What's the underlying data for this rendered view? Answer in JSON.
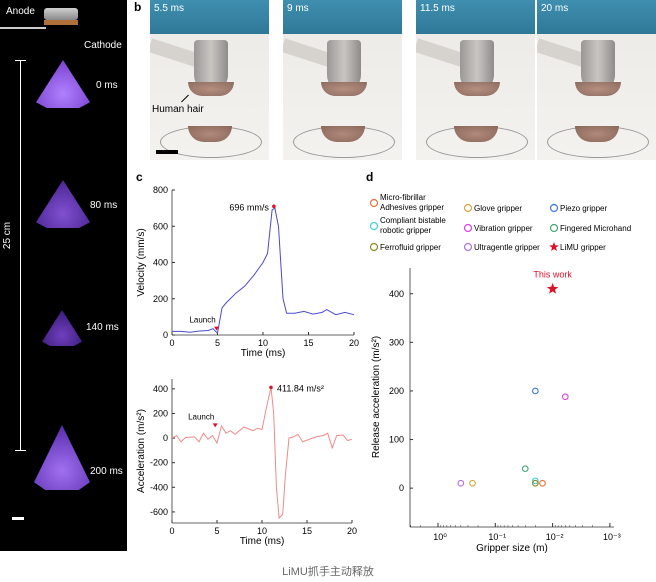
{
  "panel_a": {
    "anode_label": "Anode",
    "cathode_label": "Cathode",
    "distance_label": "25 cm",
    "frames": [
      "0 ms",
      "80 ms",
      "140 ms",
      "200 ms"
    ],
    "plume_color": "#8a4fe0"
  },
  "panel_b": {
    "label": "b",
    "frames": [
      "5.5 ms",
      "9 ms",
      "11.5 ms",
      "20 ms"
    ],
    "hair_label": "Human hair"
  },
  "panel_c": {
    "label": "c"
  },
  "panel_d": {
    "label": "d"
  },
  "caption": "LiMU抓手主动释放",
  "chart_data": [
    {
      "type": "line",
      "xlabel": "Time (ms)",
      "ylabel": "Velocity (mm/s)",
      "xlim": [
        0,
        20
      ],
      "ylim": [
        0,
        800
      ],
      "xticks": [
        0,
        5,
        10,
        15,
        20
      ],
      "yticks": [
        0,
        200,
        400,
        600,
        800
      ],
      "color": "#4a4ad0",
      "x": [
        0,
        1,
        2,
        3,
        4,
        4.5,
        5,
        5.5,
        6,
        7,
        8,
        9,
        10,
        10.5,
        11,
        11.3,
        11.7,
        12.2,
        12.6,
        13.5,
        14.5,
        15.5,
        16.5,
        17,
        18,
        19,
        20
      ],
      "y": [
        20,
        20,
        15,
        22,
        25,
        35,
        10,
        150,
        180,
        230,
        270,
        330,
        400,
        450,
        690,
        700,
        600,
        200,
        120,
        120,
        130,
        115,
        125,
        140,
        112,
        125,
        112
      ],
      "annotations": [
        {
          "text": "696 mm/s",
          "x": 11.2,
          "y": 710,
          "color": "#e0102a"
        },
        {
          "text": "Launch",
          "x": 4.9,
          "y": 30,
          "marker": "triangle-down",
          "color": "#e0102a"
        }
      ]
    },
    {
      "type": "line",
      "xlabel": "Time (ms)",
      "ylabel": "Acceleration (m/s²)",
      "xlim": [
        0,
        20
      ],
      "ylim": [
        -690,
        480
      ],
      "xticks": [
        0,
        5,
        10,
        15,
        20
      ],
      "yticks": [
        -600,
        -400,
        -200,
        0,
        200,
        400
      ],
      "color": "#f08a8a",
      "x": [
        0,
        0.5,
        1,
        1.5,
        2.5,
        3,
        3.5,
        4,
        4.5,
        5,
        5.5,
        6,
        6.5,
        7,
        8,
        9,
        9.5,
        10,
        10.5,
        11,
        11.3,
        11.6,
        11.9,
        12.3,
        12.6,
        13,
        13.5,
        14,
        14.5,
        16,
        16.8,
        17.3,
        17.8,
        18.3,
        19,
        19.5,
        20
      ],
      "y": [
        0,
        20,
        -30,
        5,
        10,
        -30,
        40,
        -10,
        20,
        -40,
        100,
        40,
        60,
        30,
        90,
        60,
        80,
        70,
        250,
        412,
        200,
        -400,
        -650,
        -620,
        -300,
        0,
        10,
        30,
        -30,
        10,
        20,
        40,
        -80,
        20,
        25,
        -20,
        -10
      ],
      "annotations": [
        {
          "text": "411.84 m/s²",
          "x": 11,
          "y": 412,
          "color": "#e0102a"
        },
        {
          "text": "Launch",
          "x": 4.8,
          "y": 95,
          "marker": "triangle-down",
          "color": "#e0102a"
        }
      ]
    },
    {
      "type": "scatter",
      "xlabel": "Gripper size (m)",
      "ylabel": "Release acceleration (m/s²)",
      "xscale": "log-reversed",
      "xlim": [
        3.1,
        0.00085
      ],
      "ylim": [
        -80,
        453
      ],
      "xticks": [
        "10⁰",
        "10⁻¹",
        "10⁻²",
        "10⁻³"
      ],
      "xtick_values": [
        1,
        0.1,
        0.01,
        0.001
      ],
      "yticks": [
        0,
        100,
        200,
        300,
        400
      ],
      "legend_position": "top",
      "series": [
        {
          "name": "Micro-fibrillar Adhesives gripper",
          "color": "#e8703a",
          "marker": "circle",
          "x": [
            0.015
          ],
          "y": [
            10
          ]
        },
        {
          "name": "Glove gripper",
          "color": "#d9a640",
          "marker": "circle",
          "x": [
            0.25
          ],
          "y": [
            10
          ]
        },
        {
          "name": "Piezo gripper",
          "color": "#3a7ad9",
          "marker": "circle",
          "x": [
            0.02
          ],
          "y": [
            200
          ]
        },
        {
          "name": "Compliant bistable robotic gripper",
          "color": "#40d0d0",
          "marker": "circle",
          "x": [
            0.02
          ],
          "y": [
            15
          ]
        },
        {
          "name": "Vibration gripper",
          "color": "#e040e0",
          "marker": "circle",
          "x": [
            0.006
          ],
          "y": [
            188
          ]
        },
        {
          "name": "Fingered Microhand",
          "color": "#40a870",
          "marker": "circle",
          "x": [
            0.03
          ],
          "y": [
            40
          ]
        },
        {
          "name": "Ferrofluid gripper",
          "color": "#8a8a20",
          "marker": "circle",
          "x": [
            0.02
          ],
          "y": [
            10
          ]
        },
        {
          "name": "Ultragentle gripper",
          "color": "#b070e0",
          "marker": "circle",
          "x": [
            0.4
          ],
          "y": [
            10
          ]
        },
        {
          "name": "LiMU gripper",
          "color": "#e0102a",
          "marker": "star",
          "x": [
            0.01
          ],
          "y": [
            410
          ]
        }
      ],
      "annotations": [
        {
          "text": "This work",
          "x": 0.01,
          "y": 440,
          "color": "#e0102a"
        }
      ]
    }
  ]
}
